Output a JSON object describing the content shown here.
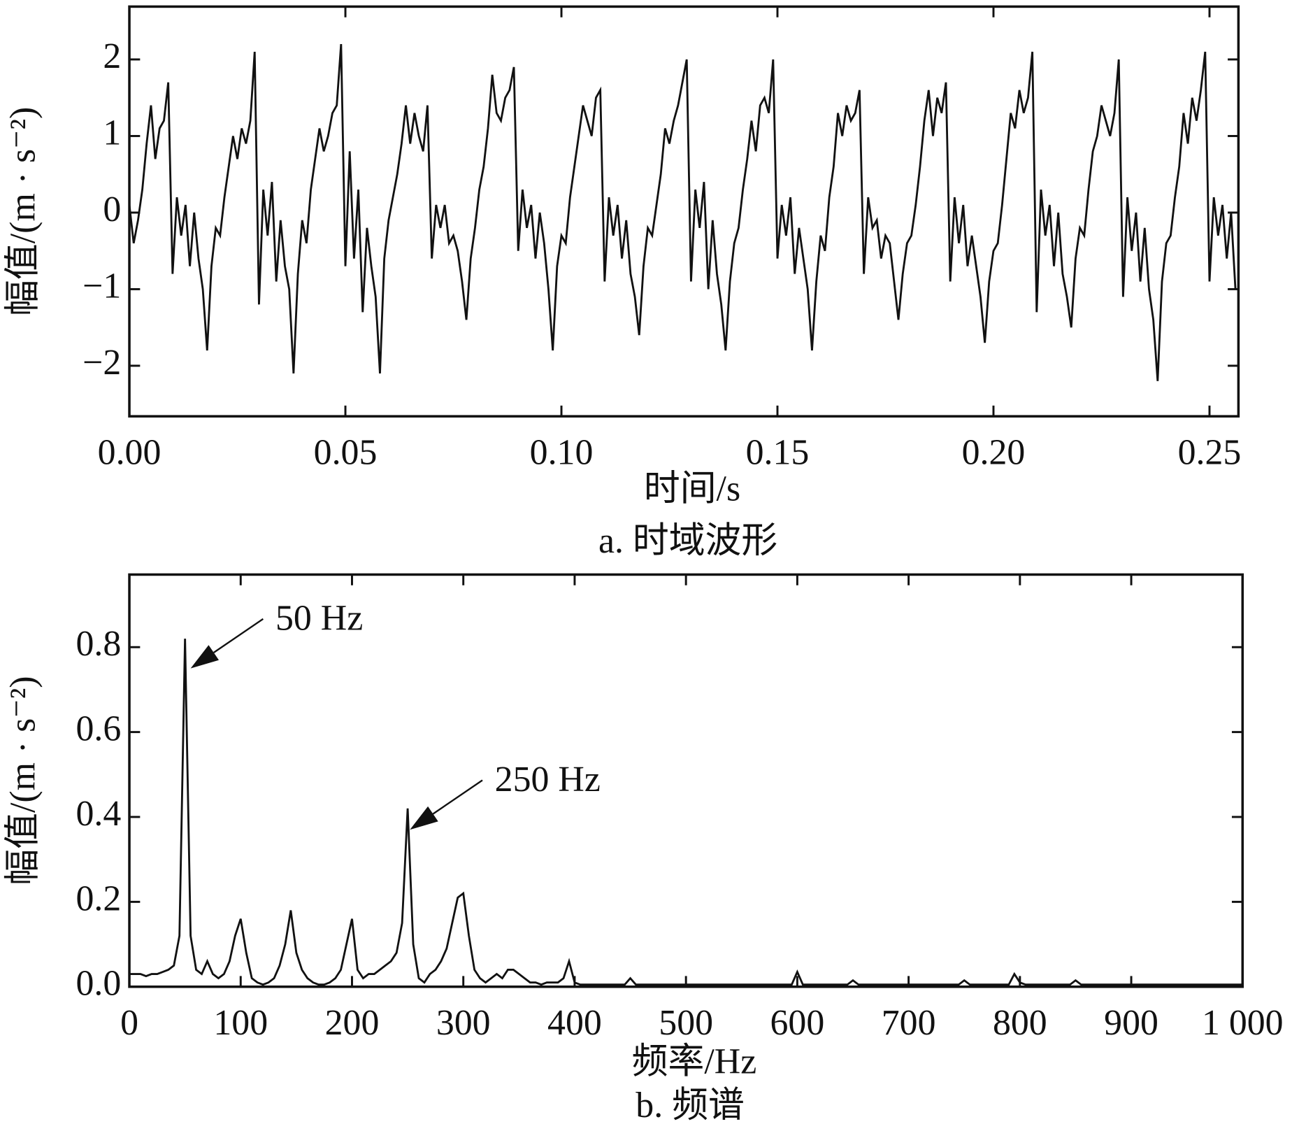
{
  "chart_data": [
    {
      "type": "line",
      "caption": "a. 时域波形",
      "xlabel": "时间/s",
      "ylabel": "幅值/(m · s⁻²)",
      "xlim": [
        0,
        0.2567
      ],
      "ylim": [
        -2.66,
        2.69
      ],
      "xticks": [
        {
          "value": 0,
          "label": "0.00"
        },
        0.05,
        {
          "value": 0.1,
          "label": "0.10"
        },
        0.15,
        {
          "value": 0.2,
          "label": "0.20"
        },
        0.25
      ],
      "yticks": [
        {
          "value": -2,
          "label": "−2"
        },
        {
          "value": -1,
          "label": "−1"
        },
        0,
        1,
        2
      ],
      "x": [
        0,
        0.001,
        0.002,
        0.003,
        0.004,
        0.005,
        0.006,
        0.007,
        0.008,
        0.009,
        0.01,
        0.011,
        0.012,
        0.013,
        0.014,
        0.015,
        0.016,
        0.017,
        0.018,
        0.019,
        0.02,
        0.021,
        0.022,
        0.023,
        0.024,
        0.025,
        0.026,
        0.027,
        0.028,
        0.029,
        0.03,
        0.031,
        0.032,
        0.033,
        0.034,
        0.035,
        0.036,
        0.037,
        0.038,
        0.039,
        0.04,
        0.041,
        0.042,
        0.043,
        0.044,
        0.045,
        0.046,
        0.047,
        0.048,
        0.049,
        0.05,
        0.051,
        0.052,
        0.053,
        0.054,
        0.055,
        0.056,
        0.057,
        0.058,
        0.059,
        0.06,
        0.061,
        0.062,
        0.063,
        0.064,
        0.065,
        0.066,
        0.067,
        0.068,
        0.069,
        0.07,
        0.071,
        0.072,
        0.073,
        0.074,
        0.075,
        0.076,
        0.077,
        0.078,
        0.079,
        0.08,
        0.081,
        0.082,
        0.083,
        0.084,
        0.085,
        0.086,
        0.087,
        0.088,
        0.089,
        0.09,
        0.091,
        0.092,
        0.093,
        0.094,
        0.095,
        0.096,
        0.097,
        0.098,
        0.099,
        0.1,
        0.101,
        0.102,
        0.103,
        0.104,
        0.105,
        0.106,
        0.107,
        0.108,
        0.109,
        0.11,
        0.111,
        0.112,
        0.113,
        0.114,
        0.115,
        0.116,
        0.117,
        0.118,
        0.119,
        0.12,
        0.121,
        0.122,
        0.123,
        0.124,
        0.125,
        0.126,
        0.127,
        0.128,
        0.129,
        0.13,
        0.131,
        0.132,
        0.133,
        0.134,
        0.135,
        0.136,
        0.137,
        0.138,
        0.139,
        0.14,
        0.141,
        0.142,
        0.143,
        0.144,
        0.145,
        0.146,
        0.147,
        0.148,
        0.149,
        0.15,
        0.151,
        0.152,
        0.153,
        0.154,
        0.155,
        0.156,
        0.157,
        0.158,
        0.159,
        0.16,
        0.161,
        0.162,
        0.163,
        0.164,
        0.165,
        0.166,
        0.167,
        0.168,
        0.169,
        0.17,
        0.171,
        0.172,
        0.173,
        0.174,
        0.175,
        0.176,
        0.177,
        0.178,
        0.179,
        0.18,
        0.181,
        0.182,
        0.183,
        0.184,
        0.185,
        0.186,
        0.187,
        0.188,
        0.189,
        0.19,
        0.191,
        0.192,
        0.193,
        0.194,
        0.195,
        0.196,
        0.197,
        0.198,
        0.199,
        0.2,
        0.201,
        0.202,
        0.203,
        0.204,
        0.205,
        0.206,
        0.207,
        0.208,
        0.209,
        0.21,
        0.211,
        0.212,
        0.213,
        0.214,
        0.215,
        0.216,
        0.217,
        0.218,
        0.219,
        0.22,
        0.221,
        0.222,
        0.223,
        0.224,
        0.225,
        0.226,
        0.227,
        0.228,
        0.229,
        0.23,
        0.231,
        0.232,
        0.233,
        0.234,
        0.235,
        0.236,
        0.237,
        0.238,
        0.239,
        0.24,
        0.241,
        0.242,
        0.243,
        0.244,
        0.245,
        0.246,
        0.247,
        0.248,
        0.249,
        0.25,
        0.251,
        0.252,
        0.253,
        0.254,
        0.255,
        0.256
      ],
      "series": [
        {
          "color": "#111111",
          "values": [
            0.1,
            -0.4,
            -0.1,
            0.3,
            0.9,
            1.4,
            0.7,
            1.1,
            1.2,
            1.7,
            -0.8,
            0.2,
            -0.3,
            0.1,
            -0.7,
            0.0,
            -0.6,
            -1.0,
            -1.8,
            -0.7,
            -0.2,
            -0.3,
            0.2,
            0.6,
            1.0,
            0.7,
            1.1,
            0.9,
            1.2,
            2.1,
            -1.2,
            0.3,
            -0.3,
            0.4,
            -0.9,
            -0.1,
            -0.7,
            -1.0,
            -2.1,
            -0.8,
            -0.1,
            -0.4,
            0.3,
            0.7,
            1.1,
            0.8,
            1.0,
            1.3,
            1.4,
            2.2,
            -0.7,
            0.8,
            -0.6,
            0.3,
            -1.3,
            -0.2,
            -0.7,
            -1.1,
            -2.1,
            -0.6,
            -0.1,
            0.2,
            0.5,
            0.9,
            1.4,
            0.9,
            1.3,
            1.0,
            0.8,
            1.4,
            -0.6,
            0.1,
            -0.2,
            0.1,
            -0.4,
            -0.3,
            -0.5,
            -0.9,
            -1.4,
            -0.6,
            -0.2,
            0.3,
            0.6,
            1.1,
            1.8,
            1.3,
            1.2,
            1.5,
            1.6,
            1.9,
            -0.5,
            0.3,
            -0.2,
            0.1,
            -0.6,
            0.0,
            -0.4,
            -1.0,
            -1.8,
            -0.7,
            -0.3,
            -0.4,
            0.2,
            0.6,
            1.0,
            1.4,
            1.2,
            1.0,
            1.5,
            1.6,
            -0.9,
            0.2,
            -0.3,
            0.1,
            -0.6,
            -0.1,
            -0.8,
            -1.1,
            -1.6,
            -0.7,
            -0.2,
            -0.3,
            0.1,
            0.5,
            1.1,
            0.9,
            1.2,
            1.4,
            1.7,
            2.0,
            -0.9,
            0.3,
            -0.2,
            0.4,
            -1.0,
            -0.1,
            -0.8,
            -1.2,
            -1.8,
            -0.9,
            -0.4,
            -0.2,
            0.3,
            0.7,
            1.2,
            0.8,
            1.4,
            1.5,
            1.3,
            2.0,
            -0.6,
            0.1,
            -0.3,
            0.2,
            -0.8,
            -0.2,
            -0.6,
            -1.0,
            -1.8,
            -0.9,
            -0.3,
            -0.5,
            0.2,
            0.6,
            1.3,
            1.0,
            1.4,
            1.2,
            1.3,
            1.6,
            -0.8,
            0.2,
            -0.2,
            -0.1,
            -0.6,
            -0.3,
            -0.4,
            -0.9,
            -1.4,
            -0.8,
            -0.4,
            -0.3,
            0.1,
            0.6,
            1.2,
            1.6,
            1.0,
            1.5,
            1.3,
            1.7,
            -0.9,
            0.2,
            -0.4,
            0.1,
            -0.7,
            -0.3,
            -0.7,
            -1.1,
            -1.7,
            -0.9,
            -0.5,
            -0.4,
            0.1,
            0.7,
            1.3,
            1.1,
            1.6,
            1.3,
            1.5,
            2.1,
            -1.3,
            0.3,
            -0.3,
            0.1,
            -0.7,
            0.0,
            -0.8,
            -1.1,
            -1.5,
            -0.6,
            -0.2,
            -0.3,
            0.3,
            0.8,
            1.0,
            1.4,
            1.2,
            1.0,
            1.3,
            2.0,
            -1.1,
            0.2,
            -0.5,
            0.0,
            -0.9,
            -0.2,
            -1.0,
            -1.4,
            -2.2,
            -0.9,
            -0.4,
            -0.3,
            0.2,
            0.6,
            1.3,
            0.9,
            1.5,
            1.2,
            1.6,
            2.1,
            -0.9,
            0.2,
            -0.3,
            0.1,
            -0.6,
            0.0,
            -1.0
          ]
        }
      ]
    },
    {
      "type": "line",
      "caption": "b. 频谱",
      "xlabel": "频率/Hz",
      "ylabel": "幅值/(m · s⁻²)",
      "xlim": [
        0,
        1000
      ],
      "ylim": [
        0,
        0.971
      ],
      "xticks": [
        0,
        100,
        200,
        300,
        400,
        500,
        600,
        700,
        800,
        900,
        {
          "value": 1000,
          "label": "1 000"
        }
      ],
      "yticks": [
        {
          "value": 0,
          "label": "0.0"
        },
        0.2,
        0.4,
        0.6,
        0.8
      ],
      "annotations": [
        {
          "text": "50 Hz",
          "x": 55,
          "y": 0.75
        },
        {
          "text": "250 Hz",
          "x": 252,
          "y": 0.37
        }
      ],
      "x": [
        0,
        5,
        10,
        15,
        20,
        25,
        30,
        35,
        40,
        45,
        50,
        55,
        60,
        65,
        70,
        75,
        80,
        85,
        90,
        95,
        100,
        105,
        110,
        115,
        120,
        125,
        130,
        135,
        140,
        145,
        150,
        155,
        160,
        165,
        170,
        175,
        180,
        185,
        190,
        195,
        200,
        205,
        210,
        215,
        220,
        225,
        230,
        235,
        240,
        245,
        250,
        255,
        260,
        265,
        270,
        275,
        280,
        285,
        290,
        295,
        300,
        305,
        310,
        315,
        320,
        325,
        330,
        335,
        340,
        345,
        350,
        355,
        360,
        365,
        370,
        375,
        380,
        385,
        390,
        395,
        400,
        405,
        410,
        415,
        420,
        425,
        430,
        435,
        440,
        445,
        450,
        455,
        460,
        465,
        470,
        475,
        480,
        485,
        490,
        495,
        500,
        505,
        510,
        515,
        520,
        525,
        530,
        535,
        540,
        545,
        550,
        555,
        560,
        565,
        570,
        575,
        580,
        585,
        590,
        595,
        600,
        605,
        610,
        615,
        620,
        625,
        630,
        635,
        640,
        645,
        650,
        655,
        660,
        665,
        670,
        675,
        680,
        685,
        690,
        695,
        700,
        705,
        710,
        715,
        720,
        725,
        730,
        735,
        740,
        745,
        750,
        755,
        760,
        765,
        770,
        775,
        780,
        785,
        790,
        795,
        800,
        805,
        810,
        815,
        820,
        825,
        830,
        835,
        840,
        845,
        850,
        855,
        860,
        865,
        870,
        875,
        880,
        885,
        890,
        895,
        900,
        905,
        910,
        915,
        920,
        925,
        930,
        935,
        940,
        945,
        950,
        955,
        960,
        965,
        970,
        975,
        980,
        985,
        990,
        995,
        1000
      ],
      "series": [
        {
          "color": "#111111",
          "values": [
            0.03,
            0.03,
            0.03,
            0.025,
            0.03,
            0.03,
            0.035,
            0.04,
            0.05,
            0.12,
            0.82,
            0.12,
            0.04,
            0.03,
            0.06,
            0.03,
            0.02,
            0.03,
            0.06,
            0.12,
            0.16,
            0.08,
            0.02,
            0.01,
            0.005,
            0.01,
            0.02,
            0.05,
            0.1,
            0.18,
            0.08,
            0.04,
            0.02,
            0.01,
            0.005,
            0.005,
            0.01,
            0.02,
            0.04,
            0.1,
            0.16,
            0.04,
            0.02,
            0.03,
            0.03,
            0.04,
            0.05,
            0.06,
            0.08,
            0.15,
            0.42,
            0.1,
            0.02,
            0.01,
            0.03,
            0.04,
            0.06,
            0.09,
            0.15,
            0.21,
            0.22,
            0.12,
            0.04,
            0.02,
            0.01,
            0.02,
            0.03,
            0.02,
            0.04,
            0.04,
            0.03,
            0.02,
            0.01,
            0.01,
            0.005,
            0.01,
            0.01,
            0.01,
            0.02,
            0.06,
            0.01,
            0.005,
            0.005,
            0.005,
            0.005,
            0.005,
            0.005,
            0.005,
            0.005,
            0.005,
            0.02,
            0.005,
            0.005,
            0.005,
            0.005,
            0.005,
            0.005,
            0.005,
            0.005,
            0.005,
            0.005,
            0.005,
            0.005,
            0.005,
            0.005,
            0.005,
            0.005,
            0.005,
            0.005,
            0.005,
            0.005,
            0.005,
            0.005,
            0.005,
            0.005,
            0.005,
            0.005,
            0.005,
            0.005,
            0.005,
            0.035,
            0.005,
            0.005,
            0.005,
            0.005,
            0.005,
            0.005,
            0.005,
            0.005,
            0.005,
            0.015,
            0.005,
            0.005,
            0.005,
            0.005,
            0.005,
            0.005,
            0.005,
            0.005,
            0.005,
            0.005,
            0.005,
            0.005,
            0.005,
            0.005,
            0.005,
            0.005,
            0.005,
            0.005,
            0.005,
            0.015,
            0.005,
            0.005,
            0.005,
            0.005,
            0.005,
            0.005,
            0.005,
            0.005,
            0.03,
            0.01,
            0.005,
            0.005,
            0.005,
            0.005,
            0.005,
            0.005,
            0.005,
            0.005,
            0.005,
            0.015,
            0.005,
            0.005,
            0.005,
            0.005,
            0.005,
            0.005,
            0.005,
            0.005,
            0.005,
            0.005,
            0.005,
            0.005,
            0.005,
            0.005,
            0.005,
            0.005,
            0.005,
            0.005,
            0.005,
            0.005,
            0.005,
            0.005,
            0.005,
            0.005,
            0.005,
            0.005,
            0.005,
            0.005,
            0.005,
            0.005
          ]
        }
      ]
    }
  ]
}
